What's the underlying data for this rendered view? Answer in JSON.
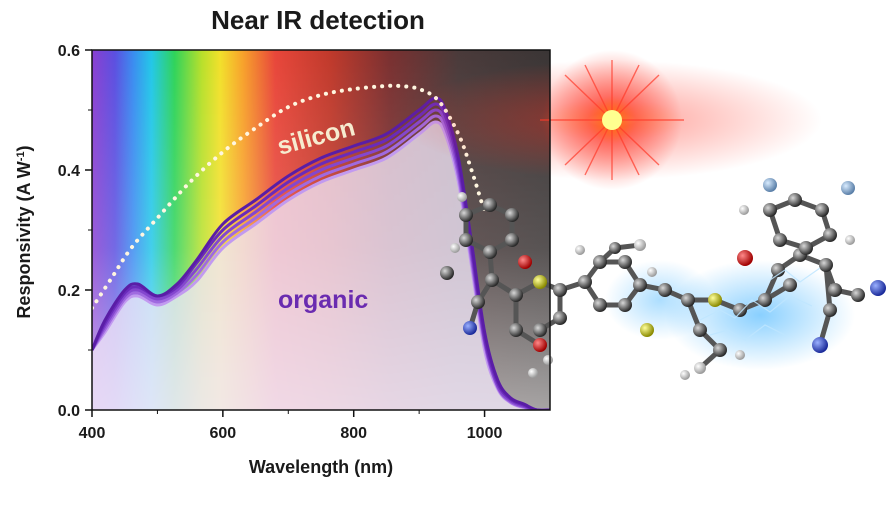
{
  "chart_data": {
    "type": "line",
    "title": "Near IR detection",
    "xlabel": "Wavelength (nm)",
    "ylabel": "Responsivity (A W",
    "ylabel_superscript": "-1",
    "ylabel_suffix": ")",
    "xlim": [
      400,
      1100
    ],
    "ylim": [
      0.0,
      0.6
    ],
    "xticks": [
      400,
      600,
      800,
      1000
    ],
    "yticks": [
      0.0,
      0.2,
      0.4,
      0.6
    ],
    "ytick_labels": [
      "0.0",
      "0.2",
      "0.4",
      "0.6"
    ],
    "annotations": [
      {
        "text": "silicon",
        "color": "#f6ecd0"
      },
      {
        "text": "organic",
        "color": "#6a2bb0"
      }
    ],
    "x": [
      400,
      420,
      450,
      470,
      500,
      530,
      560,
      600,
      650,
      700,
      750,
      800,
      850,
      900,
      925,
      940,
      960,
      980,
      1000,
      1020,
      1040,
      1060,
      1080,
      1100
    ],
    "silicon": {
      "style": "dotted",
      "color": "#fff6e0",
      "x": [
        400,
        430,
        460,
        500,
        550,
        600,
        650,
        700,
        750,
        800,
        850,
        870,
        900,
        930,
        960,
        980,
        1000
      ],
      "values": [
        0.17,
        0.22,
        0.27,
        0.32,
        0.38,
        0.43,
        0.47,
        0.505,
        0.525,
        0.535,
        0.54,
        0.54,
        0.535,
        0.515,
        0.46,
        0.4,
        0.33
      ]
    },
    "series": [
      {
        "color": "#5a1da6",
        "values": [
          0.1,
          0.15,
          0.2,
          0.21,
          0.19,
          0.21,
          0.25,
          0.31,
          0.35,
          0.39,
          0.42,
          0.44,
          0.46,
          0.5,
          0.52,
          0.5,
          0.42,
          0.28,
          0.13,
          0.05,
          0.02,
          0.01,
          0.0,
          0.0
        ]
      },
      {
        "color": "#6a2bbb",
        "values": [
          0.1,
          0.145,
          0.195,
          0.205,
          0.19,
          0.205,
          0.245,
          0.3,
          0.34,
          0.38,
          0.41,
          0.43,
          0.45,
          0.49,
          0.51,
          0.49,
          0.41,
          0.27,
          0.12,
          0.045,
          0.018,
          0.008,
          0.0,
          0.0
        ]
      },
      {
        "color": "#8447cf",
        "values": [
          0.1,
          0.14,
          0.19,
          0.2,
          0.185,
          0.2,
          0.235,
          0.29,
          0.33,
          0.37,
          0.4,
          0.42,
          0.44,
          0.48,
          0.5,
          0.48,
          0.4,
          0.26,
          0.115,
          0.04,
          0.015,
          0.006,
          0.0,
          0.0
        ]
      },
      {
        "color": "#a06ae0",
        "values": [
          0.1,
          0.135,
          0.185,
          0.195,
          0.18,
          0.195,
          0.225,
          0.28,
          0.32,
          0.36,
          0.39,
          0.41,
          0.43,
          0.47,
          0.49,
          0.47,
          0.39,
          0.25,
          0.11,
          0.038,
          0.013,
          0.005,
          0.0,
          0.0
        ]
      },
      {
        "color": "#c29af0",
        "values": [
          0.1,
          0.13,
          0.18,
          0.19,
          0.175,
          0.19,
          0.215,
          0.27,
          0.31,
          0.35,
          0.38,
          0.4,
          0.42,
          0.46,
          0.48,
          0.46,
          0.38,
          0.24,
          0.1,
          0.035,
          0.012,
          0.004,
          0.0,
          0.0
        ]
      }
    ]
  }
}
